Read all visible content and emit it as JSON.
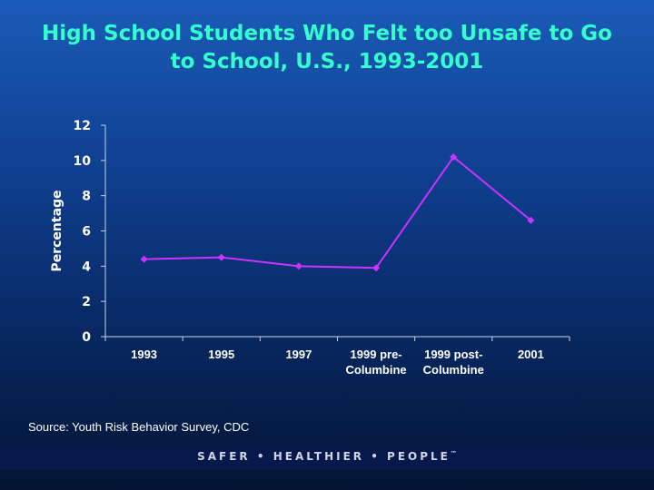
{
  "title": {
    "line1": "High School Students Who Felt too Unsafe to Go",
    "line2": "to School, U.S., 1993-2001"
  },
  "chart_data": {
    "type": "line",
    "categories": [
      [
        "1993"
      ],
      [
        "1995"
      ],
      [
        "1997"
      ],
      [
        "1999 pre-",
        "Columbine"
      ],
      [
        "1999 post-",
        "Columbine"
      ],
      [
        "2001"
      ]
    ],
    "series": [
      {
        "values": [
          4.4,
          4.5,
          4.0,
          3.9,
          10.2,
          6.6
        ]
      }
    ],
    "ylabel": "Percentage",
    "ylim": [
      0,
      12
    ],
    "yticks": [
      0,
      2,
      4,
      6,
      8,
      10,
      12
    ],
    "grid": false,
    "legend": "none",
    "colors": {
      "line": "#cc33ff",
      "axis": "#c8d2e8",
      "tick_text": "#ffffff"
    }
  },
  "source": "Source: Youth Risk Behavior Survey, CDC",
  "footer": {
    "text": "SAFER • HEALTHIER • PEOPLE",
    "mark": "™"
  }
}
